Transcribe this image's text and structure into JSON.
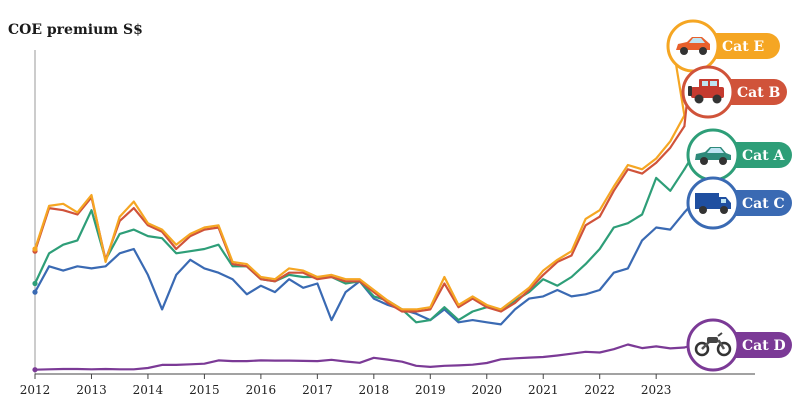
{
  "chart_data": {
    "type": "line",
    "ylabel": "COE premium S$",
    "x_ticks": [
      "2012",
      "2013",
      "2014",
      "2015",
      "2016",
      "2017",
      "2018",
      "2019",
      "2020",
      "2021",
      "2022",
      "2023"
    ],
    "xlim": [
      2012.0,
      2024.75
    ],
    "ylim": [
      0,
      155000
    ],
    "series": [
      {
        "name": "Cat E",
        "color": "#f5a623",
        "icon": "sports-car-icon",
        "x": [
          2012.0,
          2012.25,
          2012.5,
          2012.75,
          2013.0,
          2013.25,
          2013.5,
          2013.75,
          2014.0,
          2014.25,
          2014.5,
          2014.75,
          2015.0,
          2015.25,
          2015.5,
          2015.75,
          2016.0,
          2016.25,
          2016.5,
          2016.75,
          2017.0,
          2017.25,
          2017.5,
          2017.75,
          2018.0,
          2018.25,
          2018.5,
          2018.75,
          2019.0,
          2019.25,
          2019.5,
          2019.75,
          2020.0,
          2020.25,
          2020.5,
          2020.75,
          2021.0,
          2021.25,
          2021.5,
          2021.75,
          2022.0,
          2022.25,
          2022.5,
          2022.75,
          2023.0,
          2023.25,
          2023.5
        ],
        "values": [
          58000,
          78000,
          79000,
          75000,
          83000,
          52000,
          73000,
          80000,
          70000,
          67000,
          60000,
          65000,
          68000,
          69000,
          52000,
          51000,
          45000,
          44000,
          49000,
          48000,
          45000,
          46000,
          44000,
          44000,
          39000,
          34000,
          30000,
          30000,
          31000,
          45000,
          32000,
          36000,
          32000,
          30000,
          35000,
          40000,
          48000,
          53000,
          57000,
          72000,
          76000,
          87000,
          97000,
          95000,
          100000,
          108000,
          120000
        ]
      },
      {
        "name": "Cat B",
        "color": "#d0533a",
        "icon": "jeep-icon",
        "x": [
          2012.0,
          2012.25,
          2012.5,
          2012.75,
          2013.0,
          2013.25,
          2013.5,
          2013.75,
          2014.0,
          2014.25,
          2014.5,
          2014.75,
          2015.0,
          2015.25,
          2015.5,
          2015.75,
          2016.0,
          2016.25,
          2016.5,
          2016.75,
          2017.0,
          2017.25,
          2017.5,
          2017.75,
          2018.0,
          2018.25,
          2018.5,
          2018.75,
          2019.0,
          2019.25,
          2019.5,
          2019.75,
          2020.0,
          2020.25,
          2020.5,
          2020.75,
          2021.0,
          2021.25,
          2021.5,
          2021.75,
          2022.0,
          2022.25,
          2022.5,
          2022.75,
          2023.0,
          2023.25,
          2023.5
        ],
        "values": [
          57000,
          77000,
          76000,
          74000,
          82000,
          53000,
          71000,
          77000,
          69000,
          66000,
          58000,
          64000,
          67000,
          68000,
          51000,
          50000,
          44000,
          43000,
          47000,
          47000,
          44000,
          45000,
          43000,
          43000,
          38000,
          33000,
          29000,
          29000,
          30000,
          42000,
          31000,
          35000,
          31000,
          29000,
          33000,
          39000,
          46000,
          52000,
          55000,
          69000,
          73000,
          85000,
          95000,
          93000,
          98000,
          105000,
          115000
        ]
      },
      {
        "name": "Cat A",
        "color": "#2e9e78",
        "icon": "sedan-icon",
        "x": [
          2012.0,
          2012.25,
          2012.5,
          2012.75,
          2013.0,
          2013.25,
          2013.5,
          2013.75,
          2014.0,
          2014.25,
          2014.5,
          2014.75,
          2015.0,
          2015.25,
          2015.5,
          2015.75,
          2016.0,
          2016.25,
          2016.5,
          2016.75,
          2017.0,
          2017.25,
          2017.5,
          2017.75,
          2018.0,
          2018.25,
          2018.5,
          2018.75,
          2019.0,
          2019.25,
          2019.5,
          2019.75,
          2020.0,
          2020.25,
          2020.5,
          2020.75,
          2021.0,
          2021.25,
          2021.5,
          2021.75,
          2022.0,
          2022.25,
          2022.5,
          2022.75,
          2023.0,
          2023.25,
          2023.5
        ],
        "values": [
          42000,
          56000,
          60000,
          62000,
          76000,
          53000,
          65000,
          67000,
          64000,
          63000,
          56000,
          57000,
          58000,
          60000,
          50000,
          50000,
          44000,
          43000,
          46000,
          45000,
          45000,
          45000,
          42000,
          43000,
          36000,
          34000,
          30000,
          24000,
          25000,
          31000,
          25000,
          29000,
          31000,
          30000,
          34000,
          38000,
          44000,
          41000,
          45000,
          51000,
          58000,
          68000,
          70000,
          74000,
          91000,
          85000,
          95000
        ]
      },
      {
        "name": "Cat C",
        "color": "#3a6ab3",
        "icon": "van-icon",
        "x": [
          2012.0,
          2012.25,
          2012.5,
          2012.75,
          2013.0,
          2013.25,
          2013.5,
          2013.75,
          2014.0,
          2014.25,
          2014.5,
          2014.75,
          2015.0,
          2015.25,
          2015.5,
          2015.75,
          2016.0,
          2016.25,
          2016.5,
          2016.75,
          2017.0,
          2017.25,
          2017.5,
          2017.75,
          2018.0,
          2018.25,
          2018.5,
          2018.75,
          2019.0,
          2019.25,
          2019.5,
          2019.75,
          2020.0,
          2020.25,
          2020.5,
          2020.75,
          2021.0,
          2021.25,
          2021.5,
          2021.75,
          2022.0,
          2022.25,
          2022.5,
          2022.75,
          2023.0,
          2023.25,
          2023.5
        ],
        "values": [
          38000,
          50000,
          48000,
          50000,
          49000,
          50000,
          56000,
          58000,
          46000,
          30000,
          46000,
          53000,
          49000,
          47000,
          44000,
          37000,
          41000,
          38000,
          44000,
          40000,
          42000,
          25000,
          38000,
          43000,
          35000,
          32000,
          30000,
          28000,
          25000,
          30000,
          24000,
          25000,
          24000,
          23000,
          30000,
          35000,
          36000,
          39000,
          36000,
          37000,
          39000,
          47000,
          49000,
          62000,
          68000,
          67000,
          75000
        ]
      },
      {
        "name": "Cat D",
        "color": "#7b3a96",
        "icon": "motorcycle-icon",
        "x": [
          2012.0,
          2012.25,
          2012.5,
          2012.75,
          2013.0,
          2013.25,
          2013.5,
          2013.75,
          2014.0,
          2014.25,
          2014.5,
          2014.75,
          2015.0,
          2015.25,
          2015.5,
          2015.75,
          2016.0,
          2016.25,
          2016.5,
          2016.75,
          2017.0,
          2017.25,
          2017.5,
          2017.75,
          2018.0,
          2018.25,
          2018.5,
          2018.75,
          2019.0,
          2019.25,
          2019.5,
          2019.75,
          2020.0,
          2020.25,
          2020.5,
          2020.75,
          2021.0,
          2021.25,
          2021.5,
          2021.75,
          2022.0,
          2022.25,
          2022.5,
          2022.75,
          2023.0,
          2023.25,
          2023.5
        ],
        "values": [
          2000,
          2200,
          2300,
          2300,
          2200,
          2300,
          2200,
          2200,
          2800,
          4200,
          4200,
          4500,
          4800,
          6300,
          6000,
          6000,
          6300,
          6200,
          6200,
          6100,
          6000,
          6600,
          5800,
          5200,
          7500,
          6700,
          5700,
          3800,
          3300,
          3800,
          4000,
          4300,
          5100,
          6800,
          7300,
          7600,
          7900,
          8600,
          9400,
          10300,
          10000,
          11500,
          13700,
          12000,
          12800,
          11900,
          12300
        ]
      }
    ],
    "legend": "right, labels at line ends",
    "grid": false
  }
}
